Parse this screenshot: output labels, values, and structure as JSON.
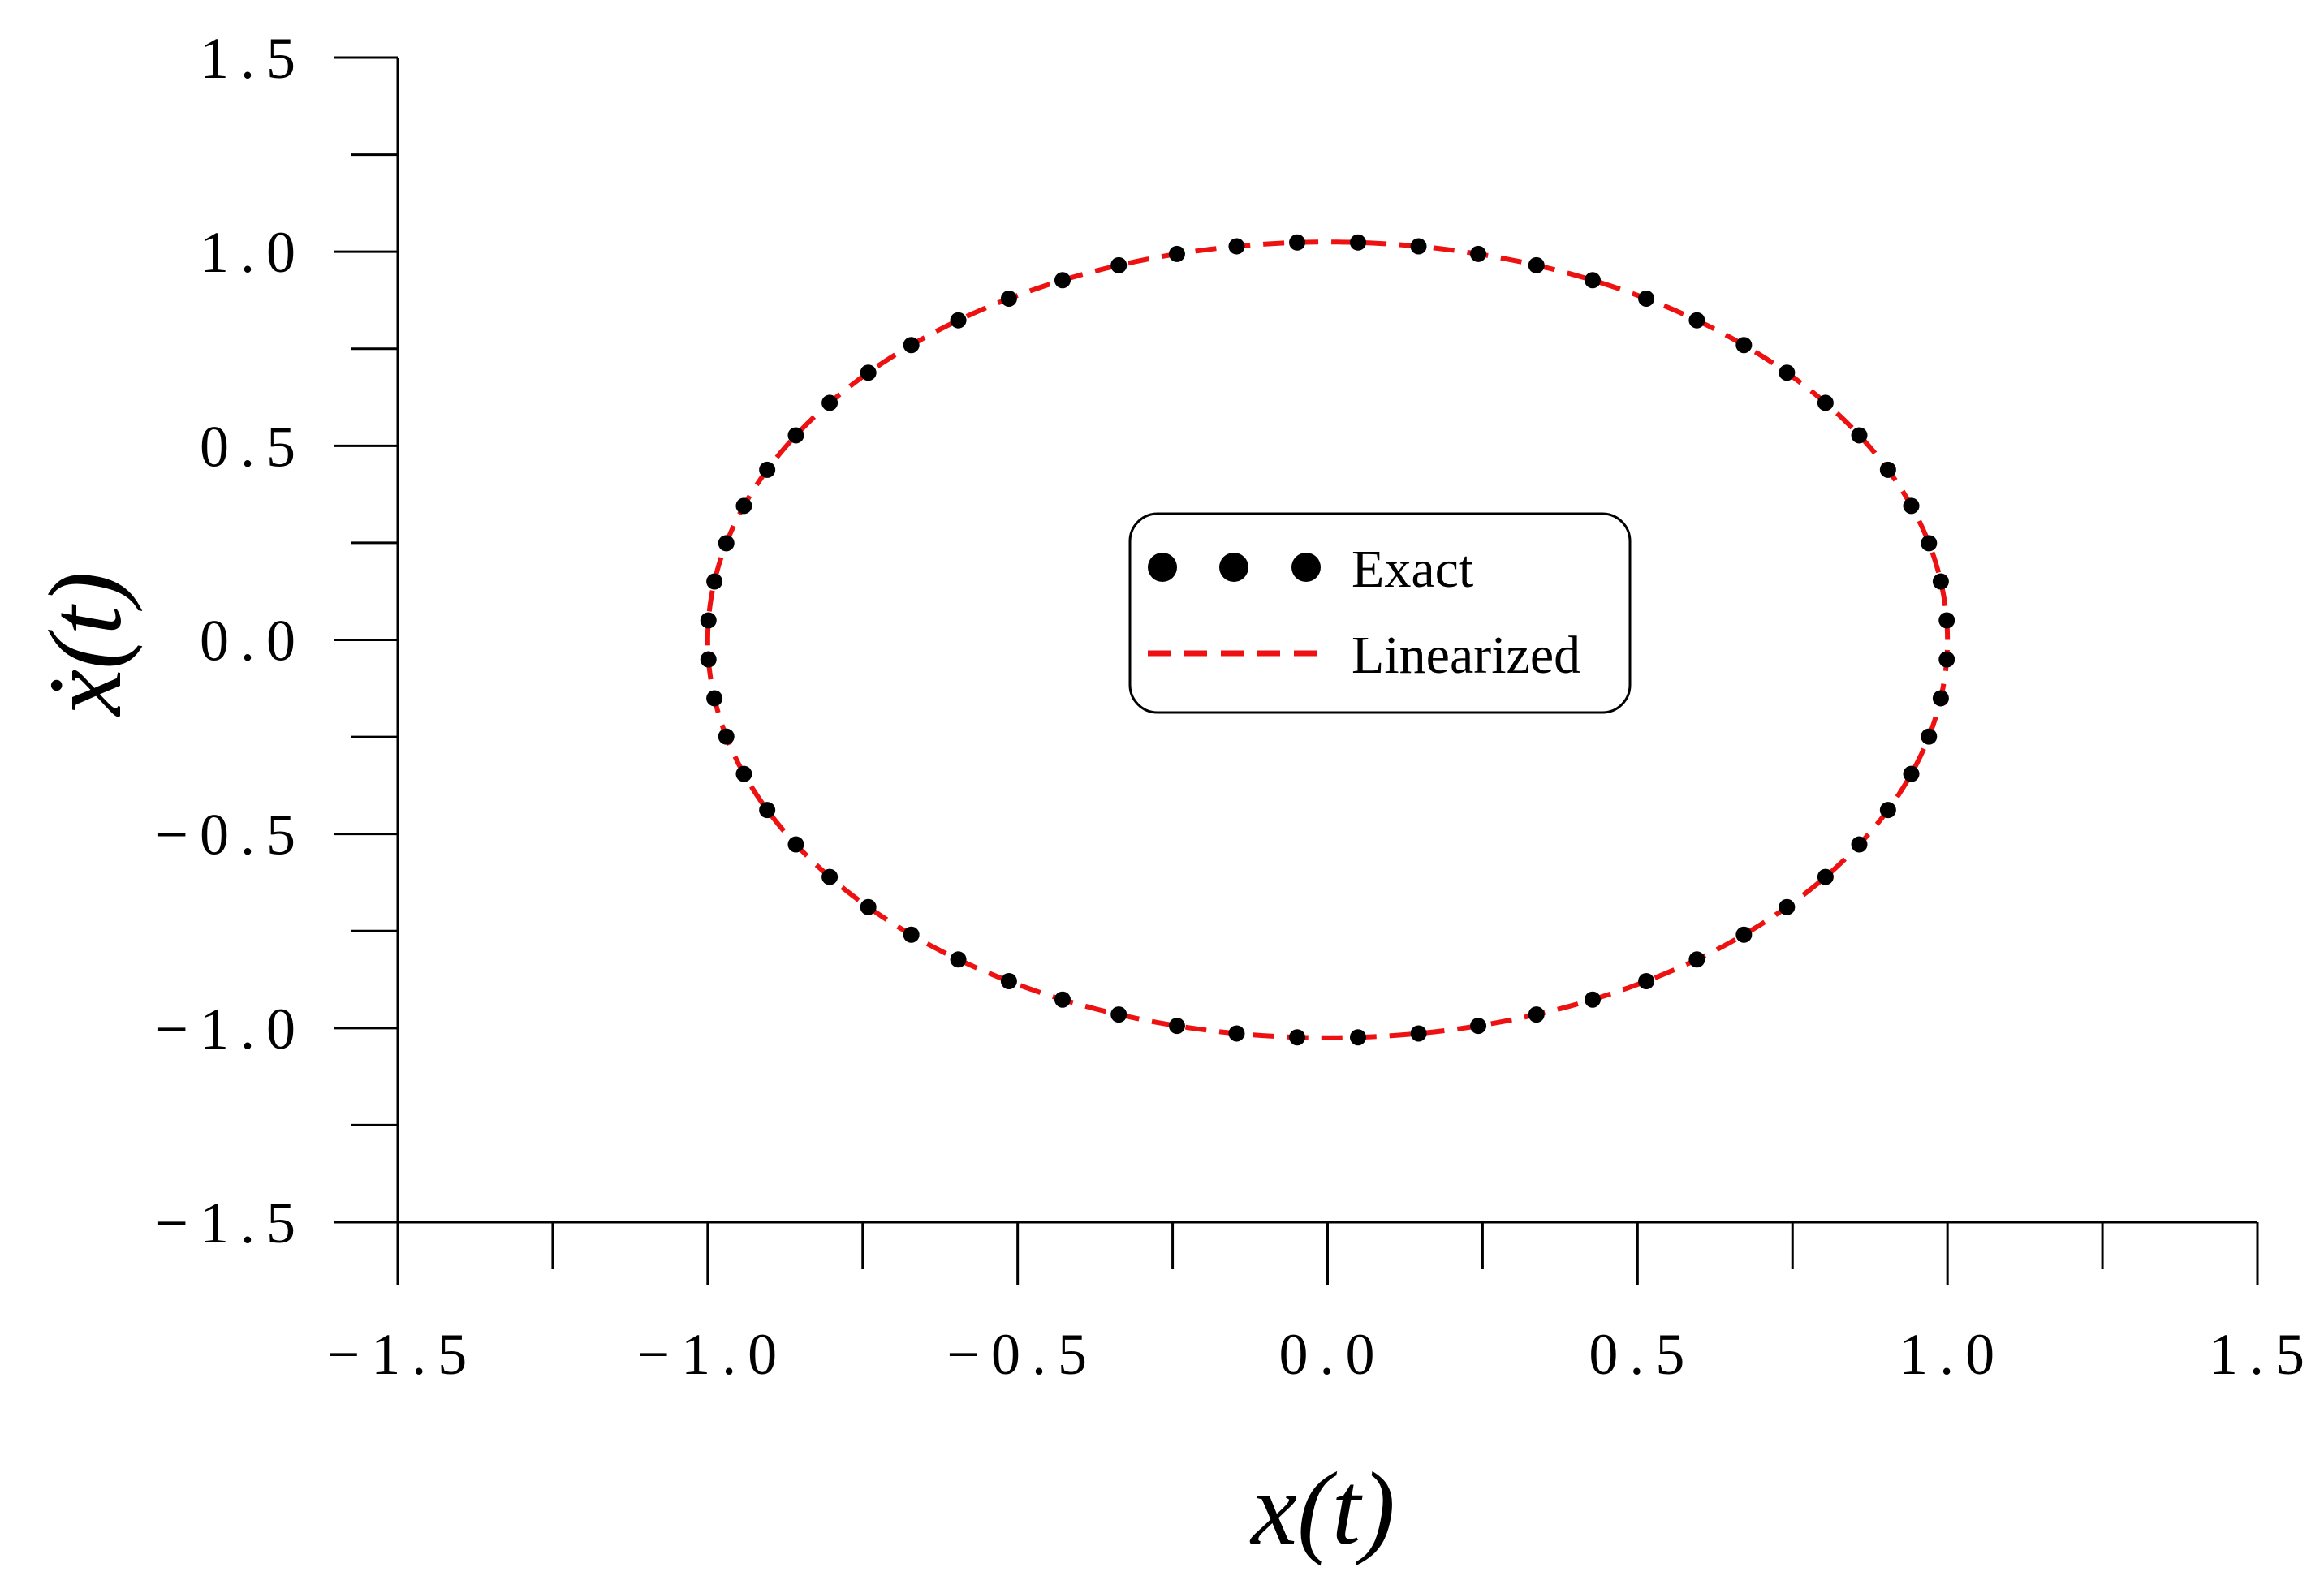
{
  "chart_data": {
    "type": "line",
    "xlabel": "x(t)",
    "ylabel": "ẋ(t)",
    "xlim": [
      -1.5,
      1.5
    ],
    "ylim": [
      -1.5,
      1.5
    ],
    "x_ticks": [
      "−1.5",
      "−1.0",
      "−0.5",
      "0.0",
      "0.5",
      "1.0",
      "1.5"
    ],
    "y_ticks": [
      "1.5",
      "1.0",
      "0.5",
      "0.0",
      "−0.5",
      "−1.0",
      "−1.5"
    ],
    "x_tick_values": [
      -1.5,
      -1.0,
      -0.5,
      0.0,
      0.5,
      1.0,
      1.5
    ],
    "y_tick_values": [
      1.5,
      1.0,
      0.5,
      0.0,
      -0.5,
      -1.0,
      -1.5
    ],
    "minor_tick_step": 0.25,
    "grid": false,
    "legend_position": "center",
    "series": [
      {
        "name": "Exact",
        "style": "dots",
        "color": "#000000",
        "curve": "ellipse",
        "amplitude_x": 1.0,
        "amplitude_y": 1.025,
        "num_points": 64
      },
      {
        "name": "Linearized",
        "style": "dashed-line",
        "color": "#ee1111",
        "curve": "ellipse",
        "amplitude_x": 1.0,
        "amplitude_y": 1.025
      }
    ]
  }
}
